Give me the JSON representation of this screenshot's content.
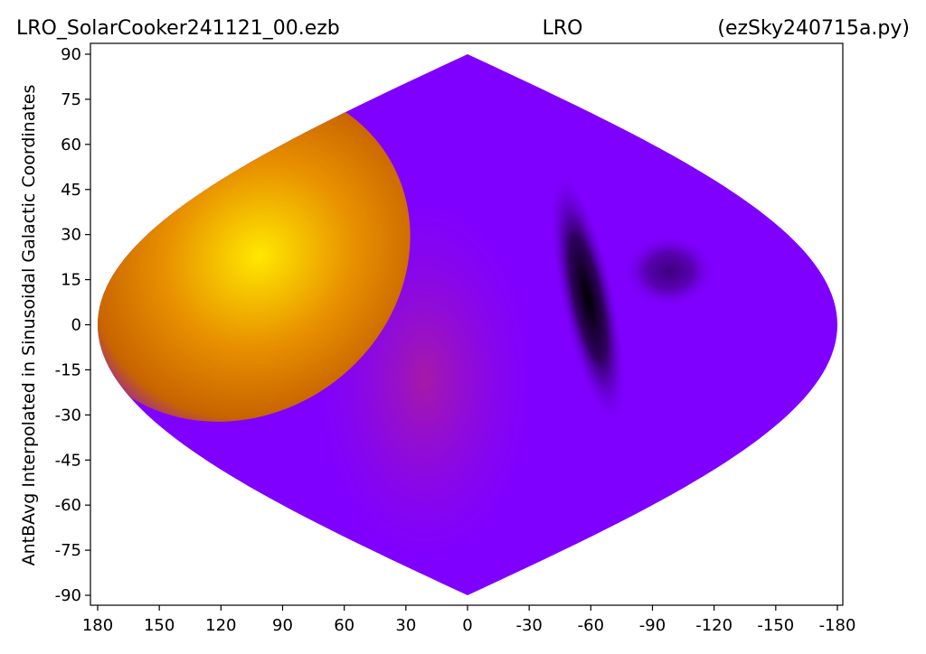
{
  "chart_data": {
    "type": "sinusoidal-map",
    "title_left": "LRO_SolarCooker241121_00.ezb",
    "title_center": "LRO",
    "title_right": "(ezSky240715a.py)",
    "ylabel": "AntBAvg Interpolated in Sinusoidal Galactic Coordinates",
    "xlim": [
      180,
      -180
    ],
    "xticks": [
      180,
      150,
      120,
      90,
      60,
      30,
      0,
      -30,
      -60,
      -90,
      -120,
      -150,
      -180
    ],
    "ylim": [
      -90,
      90
    ],
    "yticks": [
      90,
      75,
      60,
      45,
      30,
      15,
      0,
      -15,
      -30,
      -45,
      -60,
      -75,
      -90
    ]
  }
}
